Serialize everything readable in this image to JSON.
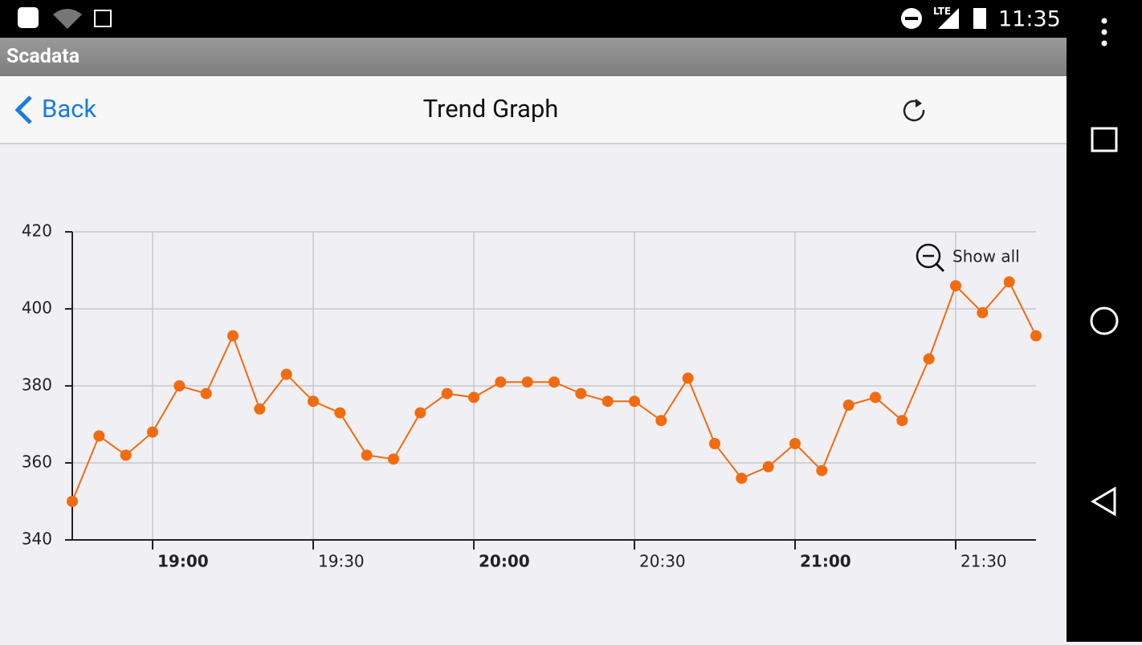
{
  "status_bar": {
    "network": "LTE",
    "time": "11:35"
  },
  "app_bar": {
    "title": "Scadata"
  },
  "header": {
    "back": "Back",
    "title": "Trend Graph"
  },
  "chart_data": {
    "type": "line",
    "color": "#f26b0f",
    "x": [
      "18:45",
      "18:50",
      "18:55",
      "19:00",
      "19:05",
      "19:10",
      "19:15",
      "19:20",
      "19:25",
      "19:30",
      "19:35",
      "19:40",
      "19:45",
      "19:50",
      "19:55",
      "20:00",
      "20:05",
      "20:10",
      "20:15",
      "20:20",
      "20:25",
      "20:30",
      "20:35",
      "20:40",
      "20:45",
      "20:50",
      "20:55",
      "21:00",
      "21:05",
      "21:10",
      "21:15",
      "21:20",
      "21:25",
      "21:30",
      "21:35",
      "21:40",
      "21:45"
    ],
    "values": [
      350,
      367,
      362,
      368,
      380,
      378,
      393,
      374,
      383,
      376,
      373,
      362,
      361,
      373,
      378,
      377,
      381,
      381,
      381,
      378,
      376,
      376,
      371,
      382,
      365,
      356,
      359,
      365,
      358,
      375,
      377,
      371,
      387,
      406,
      399,
      407,
      393
    ],
    "xlim": [
      "18:45",
      "21:45"
    ],
    "xticks": [
      "19:00",
      "19:30",
      "20:00",
      "20:30",
      "21:00",
      "21:30"
    ],
    "ylim": [
      340,
      420
    ],
    "yticks": [
      340,
      360,
      380,
      400,
      420
    ],
    "grid": true,
    "zoom_label": "Show all"
  }
}
